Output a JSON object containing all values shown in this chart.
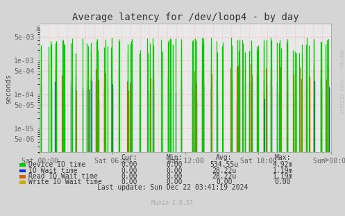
{
  "title": "Average latency for /dev/loop4 - by day",
  "ylabel": "seconds",
  "watermark": "RRDTOOL / TOBI OETIKER",
  "munin_version": "Munin 2.0.57",
  "background_color": "#d5d5d5",
  "plot_bg_color": "#e8e8e8",
  "dotted_grid_color": "#ffaaaa",
  "white_grid_color": "#ffffff",
  "ylim_min": 2e-06,
  "ylim_max": 0.012,
  "yticks": [
    5e-06,
    1e-05,
    5e-05,
    0.0001,
    0.0005,
    0.001,
    0.005
  ],
  "ytick_labels": [
    "5e-06",
    "1e-05",
    "5e-05",
    "1e-04",
    "5e-04",
    "1e-03",
    "5e-03"
  ],
  "xtick_positions": [
    0.0,
    0.25,
    0.5,
    0.75,
    1.0
  ],
  "xtick_labels": [
    "Sat 00:00",
    "Sat 06:00",
    "Sat 12:00",
    "Sat 18:00",
    "Sun 00:00"
  ],
  "series": [
    {
      "name": "Device IO time",
      "color": "#00cc00"
    },
    {
      "name": "IO Wait time",
      "color": "#0033cc"
    },
    {
      "name": "Read IO Wait time",
      "color": "#cc6600"
    },
    {
      "name": "Write IO Wait time",
      "color": "#ccaa00"
    }
  ],
  "legend_headers": [
    "Cur:",
    "Min:",
    "Avg:",
    "Max:"
  ],
  "legend_data": [
    [
      "0.00",
      "0.00",
      "534.55u",
      "4.92m"
    ],
    [
      "0.00",
      "0.00",
      "28.22u",
      "1.19m"
    ],
    [
      "0.00",
      "0.00",
      "28.22u",
      "1.19m"
    ],
    [
      "0.00",
      "0.00",
      "0.00",
      "0.00"
    ]
  ],
  "last_update": "Last update: Sun Dec 22 03:41:19 2024",
  "title_fontsize": 10,
  "axis_fontsize": 7,
  "legend_fontsize": 7
}
